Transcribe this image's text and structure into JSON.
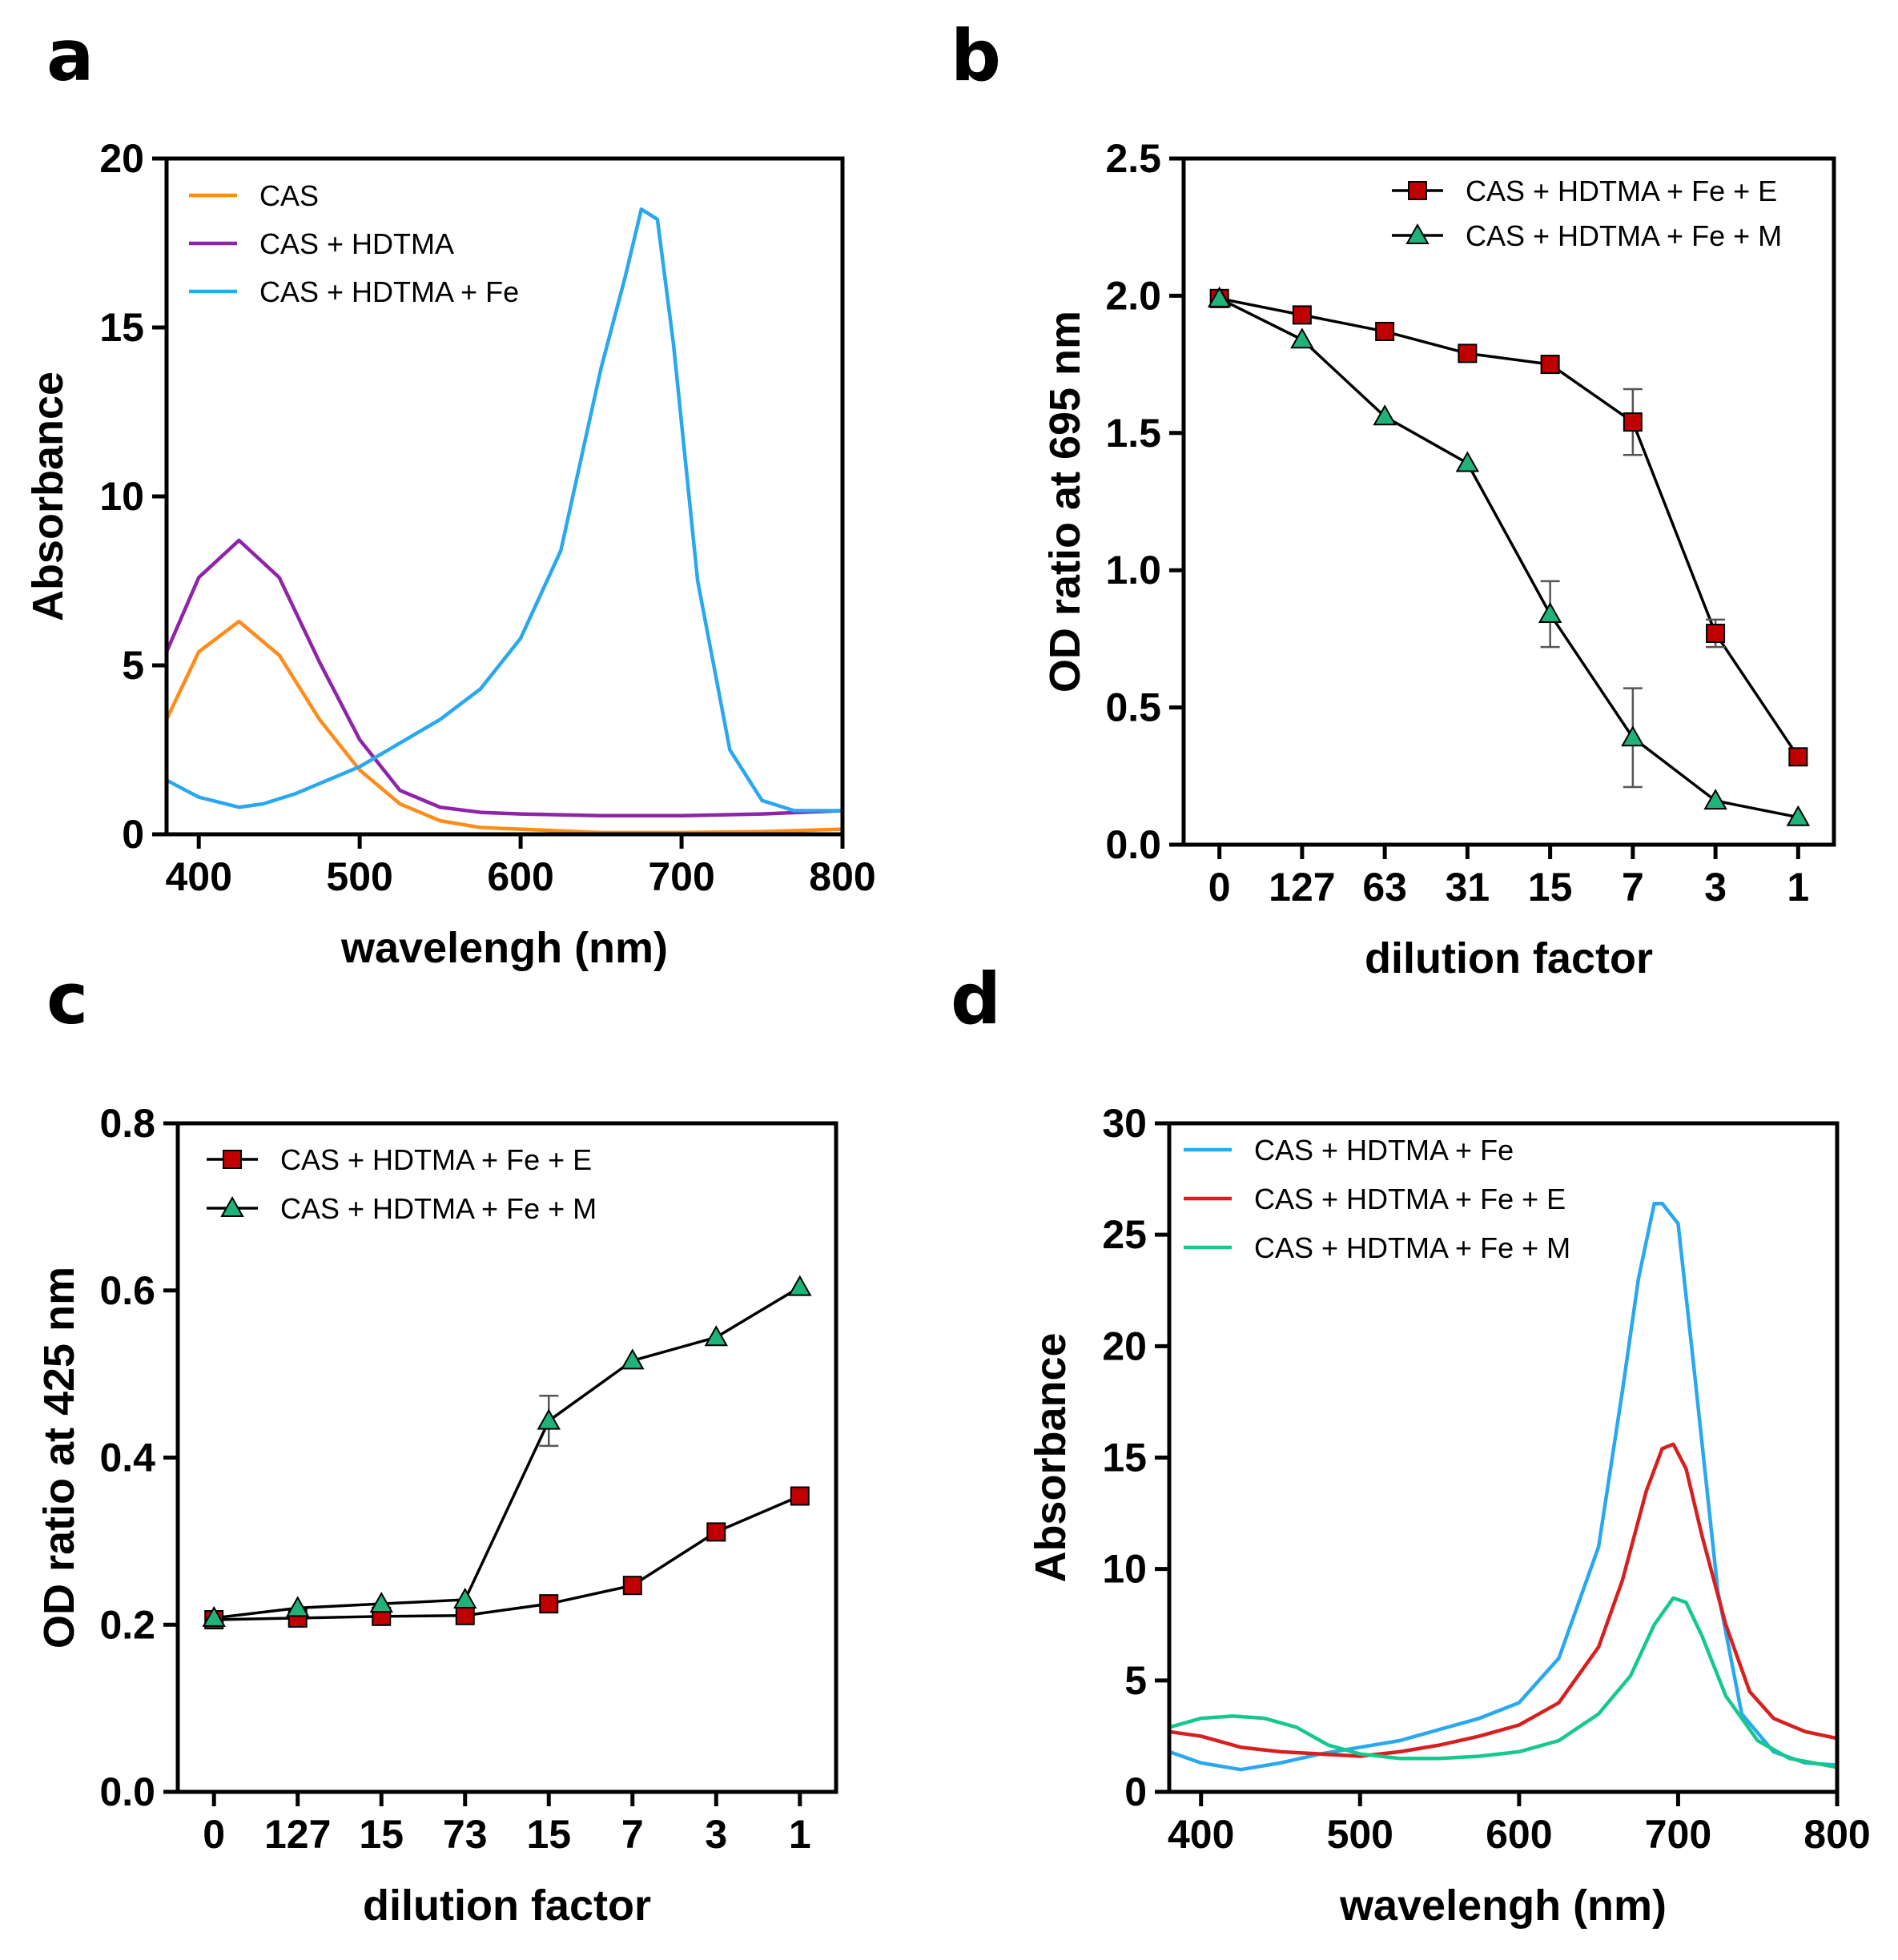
{
  "panels": [
    {
      "label": "a"
    },
    {
      "label": "b"
    },
    {
      "label": "c"
    },
    {
      "label": "d"
    }
  ],
  "chart_data": [
    {
      "panel": "a",
      "type": "line",
      "xlabel": "wavelengh (nm)",
      "ylabel": "Absorbance",
      "xlim": [
        380,
        800
      ],
      "ylim": [
        0,
        20
      ],
      "xticks": [
        400,
        500,
        600,
        700,
        800
      ],
      "yticks": [
        0,
        5,
        10,
        15,
        20
      ],
      "legend_position": "top-left",
      "series": [
        {
          "name": "CAS",
          "color": "#ff8c1a",
          "x": [
            380,
            400,
            425,
            450,
            475,
            500,
            525,
            550,
            575,
            600,
            650,
            700,
            750,
            800
          ],
          "y": [
            3.4,
            5.4,
            6.3,
            5.3,
            3.4,
            1.9,
            0.9,
            0.4,
            0.2,
            0.15,
            0.05,
            0.05,
            0.08,
            0.15
          ]
        },
        {
          "name": "CAS + HDTMA",
          "color": "#8e24aa",
          "x": [
            380,
            400,
            425,
            450,
            475,
            500,
            525,
            550,
            575,
            600,
            650,
            700,
            750,
            800
          ],
          "y": [
            5.4,
            7.6,
            8.7,
            7.6,
            5.1,
            2.8,
            1.3,
            0.8,
            0.65,
            0.6,
            0.55,
            0.55,
            0.6,
            0.7
          ]
        },
        {
          "name": "CAS + HDTMA + Fe",
          "color": "#29a8f0",
          "x": [
            380,
            400,
            425,
            440,
            460,
            500,
            525,
            550,
            575,
            600,
            625,
            650,
            665,
            675,
            685,
            695,
            710,
            730,
            750,
            770,
            800
          ],
          "y": [
            1.6,
            1.1,
            0.8,
            0.9,
            1.2,
            2.0,
            2.7,
            3.4,
            4.3,
            5.8,
            8.4,
            13.8,
            16.5,
            18.5,
            18.2,
            14.5,
            7.5,
            2.5,
            1.0,
            0.7,
            0.7
          ]
        }
      ]
    },
    {
      "panel": "b",
      "type": "line",
      "xlabel": "dilution  factor",
      "ylabel": "OD ratio at 695 nm",
      "ylim": [
        0,
        2.5
      ],
      "yticks": [
        "0.0",
        "0.5",
        "1.0",
        "1.5",
        "2.0",
        "2.5"
      ],
      "categories": [
        "0",
        "127",
        "63",
        "31",
        "15",
        "7",
        "3",
        "1"
      ],
      "legend_position": "top-right",
      "series": [
        {
          "name": "CAS + HDTMA + Fe + E",
          "marker": "square",
          "color": "#c00000",
          "values": [
            1.99,
            1.93,
            1.87,
            1.79,
            1.75,
            1.54,
            0.77,
            0.32
          ],
          "errors": [
            0.02,
            0.02,
            0.02,
            0.02,
            0.02,
            0.12,
            0.05,
            0.03
          ]
        },
        {
          "name": "CAS + HDTMA + Fe + M",
          "marker": "triangle",
          "color": "#1fb37a",
          "values": [
            1.99,
            1.84,
            1.56,
            1.39,
            0.84,
            0.39,
            0.16,
            0.1
          ],
          "errors": [
            0.02,
            0.02,
            0.02,
            0.02,
            0.12,
            0.18,
            0.02,
            0.01
          ]
        }
      ]
    },
    {
      "panel": "c",
      "type": "line",
      "xlabel": "dilution  factor",
      "ylabel": "OD ratio at 425 nm",
      "ylim": [
        0,
        0.8
      ],
      "yticks": [
        "0.0",
        "0.2",
        "0.4",
        "0.6",
        "0.8"
      ],
      "categories": [
        "0",
        "127",
        "15",
        "73",
        "15",
        "7",
        "3",
        "1"
      ],
      "legend_position": "top-left",
      "series": [
        {
          "name": "CAS + HDTMA + Fe + E",
          "marker": "square",
          "color": "#c00000",
          "values": [
            0.206,
            0.208,
            0.21,
            0.211,
            0.225,
            0.247,
            0.311,
            0.354
          ],
          "errors": [
            0,
            0,
            0,
            0,
            0,
            0,
            0,
            0
          ]
        },
        {
          "name": "CAS + HDTMA + Fe + M",
          "marker": "triangle",
          "color": "#1fb37a",
          "values": [
            0.208,
            0.22,
            0.225,
            0.23,
            0.444,
            0.516,
            0.544,
            0.604
          ],
          "errors": [
            0,
            0,
            0,
            0,
            0.03,
            0,
            0,
            0
          ]
        }
      ]
    },
    {
      "panel": "d",
      "type": "line",
      "xlabel": "wavelengh (nm)",
      "ylabel": "Absorbance",
      "xlim": [
        380,
        800
      ],
      "ylim": [
        0,
        30
      ],
      "xticks": [
        400,
        500,
        600,
        700,
        800
      ],
      "yticks": [
        0,
        5,
        10,
        15,
        20,
        25,
        30
      ],
      "legend_position": "top-left",
      "series": [
        {
          "name": "CAS + HDTMA + Fe",
          "color": "#29a8f0",
          "x": [
            380,
            400,
            425,
            450,
            475,
            500,
            525,
            550,
            575,
            600,
            625,
            650,
            665,
            675,
            685,
            690,
            700,
            710,
            725,
            740,
            760,
            780,
            800
          ],
          "y": [
            1.8,
            1.3,
            1.0,
            1.3,
            1.7,
            2.0,
            2.3,
            2.8,
            3.3,
            4.0,
            6.0,
            11.0,
            18.0,
            23.0,
            26.4,
            26.4,
            25.5,
            19.0,
            9.0,
            3.5,
            1.8,
            1.3,
            1.2
          ]
        },
        {
          "name": "CAS + HDTMA + Fe + E",
          "color": "#d81f1f",
          "x": [
            380,
            400,
            425,
            450,
            475,
            500,
            525,
            550,
            575,
            600,
            625,
            650,
            665,
            680,
            690,
            697,
            705,
            715,
            730,
            745,
            760,
            780,
            800
          ],
          "y": [
            2.7,
            2.5,
            2.0,
            1.8,
            1.7,
            1.6,
            1.8,
            2.1,
            2.5,
            3.0,
            4.0,
            6.5,
            9.5,
            13.5,
            15.4,
            15.6,
            14.5,
            11.5,
            7.5,
            4.5,
            3.3,
            2.7,
            2.4
          ]
        },
        {
          "name": "CAS + HDTMA + Fe + M",
          "color": "#15c98e",
          "x": [
            380,
            400,
            420,
            440,
            460,
            480,
            500,
            525,
            550,
            575,
            600,
            625,
            650,
            670,
            685,
            697,
            705,
            715,
            730,
            750,
            770,
            800
          ],
          "y": [
            2.9,
            3.3,
            3.4,
            3.3,
            2.9,
            2.1,
            1.7,
            1.5,
            1.5,
            1.6,
            1.8,
            2.3,
            3.5,
            5.2,
            7.5,
            8.7,
            8.5,
            7.0,
            4.3,
            2.3,
            1.5,
            1.1
          ]
        }
      ]
    }
  ]
}
